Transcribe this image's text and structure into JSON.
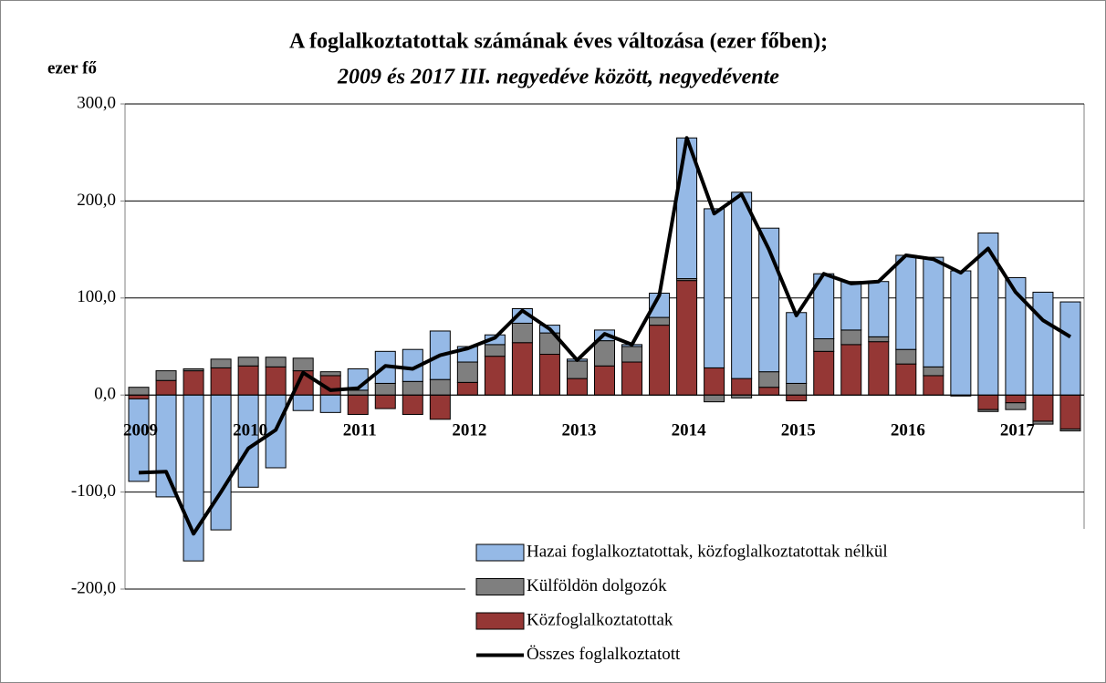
{
  "chart_data": {
    "type": "stacked-bar-line",
    "title": "A foglalkoztatottak számának éves változása (ezer főben);",
    "subtitle": "2009 és 2017 III. negyedéve között, negyedévente",
    "y_label": "ezer fő",
    "categories": [
      "2009",
      null,
      null,
      null,
      "2010",
      null,
      null,
      null,
      "2011",
      null,
      null,
      null,
      "2012",
      null,
      null,
      null,
      "2013",
      null,
      null,
      null,
      "2014",
      null,
      null,
      null,
      "2015",
      null,
      null,
      null,
      "2016",
      null,
      null,
      null,
      "2017",
      null,
      null
    ],
    "series": [
      {
        "name": "Közfoglalkoztatottak",
        "type": "bar",
        "color": "#953735",
        "values": [
          -4,
          15,
          25,
          28,
          30,
          29,
          25,
          20,
          -20,
          -14,
          -20,
          -25,
          13,
          40,
          54,
          42,
          17,
          30,
          34,
          72,
          118,
          28,
          17,
          8,
          -6,
          45,
          52,
          55,
          32,
          20,
          -1,
          -15,
          -8,
          -27,
          -35
        ]
      },
      {
        "name": "Külföldön dolgozók",
        "type": "bar",
        "color": "#7f7f7f",
        "values": [
          8,
          10,
          2,
          9,
          9,
          10,
          13,
          4,
          5,
          12,
          14,
          16,
          21,
          12,
          20,
          22,
          18,
          26,
          16,
          8,
          2,
          -7,
          -3,
          16,
          12,
          13,
          15,
          5,
          15,
          9,
          0,
          -2,
          -7,
          -3,
          -2
        ]
      },
      {
        "name": "Hazai foglalkoztatottak, közfoglalkoztatottak nélkül",
        "type": "bar",
        "color": "#95b9e6",
        "values": [
          -85,
          -105,
          -171,
          -139,
          -95,
          -75,
          -16,
          -18,
          22,
          33,
          33,
          50,
          16,
          10,
          15,
          8,
          2,
          11,
          2,
          25,
          145,
          164,
          192,
          148,
          73,
          67,
          50,
          57,
          97,
          113,
          128,
          167,
          121,
          106,
          96
        ]
      },
      {
        "name": "Összes foglalkoztatott",
        "type": "line",
        "color": "#000000",
        "values": [
          -80,
          -79,
          -143,
          -100,
          -55,
          -36,
          23,
          5,
          7,
          30,
          27,
          41,
          48,
          59,
          87,
          68,
          36,
          63,
          52,
          103,
          265,
          187,
          207,
          150,
          82,
          125,
          115,
          117,
          144,
          140,
          126,
          151,
          106,
          77,
          60
        ]
      }
    ],
    "ylim": [
      -200,
      300
    ],
    "yticks": [
      {
        "value": -200,
        "label": "-200,0"
      },
      {
        "value": -100,
        "label": "-100,0"
      },
      {
        "value": 0,
        "label": "0,0"
      },
      {
        "value": 100,
        "label": "100,0"
      },
      {
        "value": 200,
        "label": "200,0"
      },
      {
        "value": 300,
        "label": "300,0"
      }
    ],
    "grid": true
  }
}
